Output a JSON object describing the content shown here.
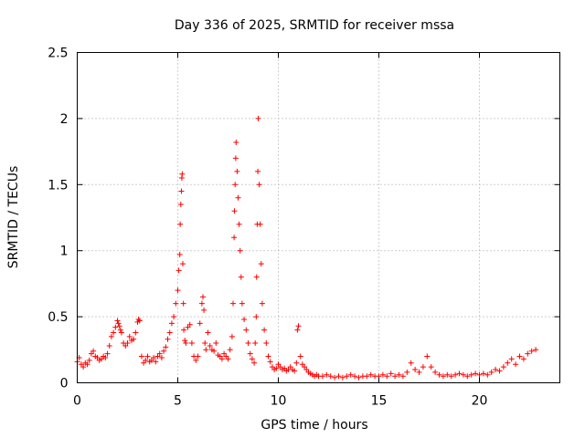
{
  "chart_data": {
    "type": "scatter",
    "title": "Day 336 of 2025, SRMTID for receiver mssa",
    "xlabel": "GPS time / hours",
    "ylabel": "SRMTID / TECUs",
    "xlim": [
      0,
      24
    ],
    "ylim": [
      0,
      2.5
    ],
    "xticks": [
      0,
      5,
      10,
      15,
      20
    ],
    "xtick_labels": [
      "0",
      "5",
      "10",
      "15",
      "20"
    ],
    "yticks": [
      0,
      0.5,
      1,
      1.5,
      2,
      2.5
    ],
    "ytick_labels": [
      "0",
      "0.5",
      "1",
      "1.5",
      "2",
      "2.5"
    ],
    "grid": true,
    "marker": "plus",
    "color": "#ff0000",
    "series": [
      {
        "name": "SRMTID",
        "x": [
          0.0,
          0.1,
          0.2,
          0.3,
          0.4,
          0.5,
          0.6,
          0.7,
          0.8,
          0.9,
          1.0,
          1.1,
          1.2,
          1.3,
          1.4,
          1.5,
          1.6,
          1.7,
          1.8,
          1.9,
          2.0,
          2.05,
          2.1,
          2.15,
          2.2,
          2.3,
          2.4,
          2.5,
          2.6,
          2.7,
          2.8,
          2.9,
          3.0,
          3.05,
          3.1,
          3.2,
          3.3,
          3.4,
          3.5,
          3.6,
          3.7,
          3.8,
          3.9,
          4.0,
          4.1,
          4.2,
          4.3,
          4.4,
          4.5,
          4.6,
          4.7,
          4.8,
          4.9,
          5.0,
          5.05,
          5.1,
          5.12,
          5.15,
          5.18,
          5.2,
          5.22,
          5.25,
          5.28,
          5.3,
          5.35,
          5.4,
          5.5,
          5.6,
          5.7,
          5.8,
          5.9,
          6.0,
          6.1,
          6.2,
          6.25,
          6.3,
          6.35,
          6.4,
          6.5,
          6.6,
          6.7,
          6.8,
          6.9,
          7.0,
          7.1,
          7.2,
          7.3,
          7.4,
          7.5,
          7.6,
          7.7,
          7.75,
          7.8,
          7.82,
          7.85,
          7.88,
          7.9,
          7.95,
          8.0,
          8.05,
          8.1,
          8.15,
          8.2,
          8.3,
          8.4,
          8.5,
          8.6,
          8.7,
          8.8,
          8.85,
          8.9,
          8.92,
          8.95,
          8.98,
          9.0,
          9.05,
          9.1,
          9.15,
          9.2,
          9.3,
          9.4,
          9.5,
          9.6,
          9.7,
          9.8,
          9.9,
          10.0,
          10.1,
          10.2,
          10.3,
          10.4,
          10.5,
          10.6,
          10.7,
          10.8,
          10.9,
          10.95,
          11.0,
          11.1,
          11.2,
          11.3,
          11.4,
          11.5,
          11.6,
          11.7,
          11.8,
          11.9,
          12.0,
          12.2,
          12.4,
          12.6,
          12.8,
          13.0,
          13.2,
          13.4,
          13.6,
          13.8,
          14.0,
          14.2,
          14.4,
          14.6,
          14.8,
          15.0,
          15.2,
          15.4,
          15.6,
          15.8,
          16.0,
          16.2,
          16.4,
          16.6,
          16.8,
          17.0,
          17.2,
          17.4,
          17.6,
          17.8,
          18.0,
          18.2,
          18.4,
          18.6,
          18.8,
          19.0,
          19.2,
          19.4,
          19.6,
          19.8,
          20.0,
          20.2,
          20.4,
          20.6,
          20.8,
          21.0,
          21.2,
          21.4,
          21.6,
          21.8,
          22.0,
          22.2,
          22.4,
          22.6,
          22.8
        ],
        "y": [
          0.16,
          0.19,
          0.14,
          0.12,
          0.15,
          0.14,
          0.17,
          0.22,
          0.24,
          0.2,
          0.19,
          0.17,
          0.18,
          0.2,
          0.19,
          0.22,
          0.28,
          0.35,
          0.38,
          0.42,
          0.47,
          0.45,
          0.43,
          0.4,
          0.38,
          0.3,
          0.28,
          0.3,
          0.35,
          0.32,
          0.33,
          0.38,
          0.46,
          0.48,
          0.47,
          0.2,
          0.15,
          0.17,
          0.2,
          0.16,
          0.17,
          0.19,
          0.16,
          0.2,
          0.22,
          0.19,
          0.24,
          0.27,
          0.33,
          0.38,
          0.45,
          0.5,
          0.6,
          0.7,
          0.85,
          0.97,
          1.2,
          1.35,
          1.45,
          1.55,
          1.58,
          0.9,
          0.6,
          0.4,
          0.32,
          0.3,
          0.42,
          0.44,
          0.3,
          0.2,
          0.17,
          0.2,
          0.45,
          0.6,
          0.65,
          0.55,
          0.3,
          0.25,
          0.38,
          0.28,
          0.25,
          0.24,
          0.3,
          0.21,
          0.2,
          0.18,
          0.22,
          0.2,
          0.18,
          0.25,
          0.35,
          0.6,
          1.1,
          1.3,
          1.5,
          1.7,
          1.82,
          1.6,
          1.4,
          1.2,
          1.0,
          0.8,
          0.6,
          0.48,
          0.4,
          0.3,
          0.22,
          0.18,
          0.15,
          0.3,
          0.5,
          0.8,
          1.2,
          1.6,
          2.0,
          1.5,
          1.2,
          0.9,
          0.6,
          0.4,
          0.3,
          0.2,
          0.16,
          0.12,
          0.1,
          0.11,
          0.14,
          0.12,
          0.1,
          0.11,
          0.09,
          0.1,
          0.12,
          0.1,
          0.09,
          0.15,
          0.4,
          0.43,
          0.2,
          0.14,
          0.12,
          0.1,
          0.08,
          0.07,
          0.06,
          0.05,
          0.06,
          0.05,
          0.05,
          0.06,
          0.05,
          0.04,
          0.05,
          0.04,
          0.05,
          0.06,
          0.05,
          0.04,
          0.05,
          0.05,
          0.06,
          0.05,
          0.05,
          0.06,
          0.05,
          0.07,
          0.05,
          0.06,
          0.05,
          0.08,
          0.15,
          0.1,
          0.08,
          0.12,
          0.2,
          0.12,
          0.08,
          0.06,
          0.05,
          0.06,
          0.05,
          0.06,
          0.07,
          0.06,
          0.05,
          0.06,
          0.07,
          0.06,
          0.07,
          0.06,
          0.08,
          0.1,
          0.09,
          0.12,
          0.15,
          0.18,
          0.14,
          0.2,
          0.18,
          0.22,
          0.24,
          0.25
        ]
      }
    ]
  }
}
